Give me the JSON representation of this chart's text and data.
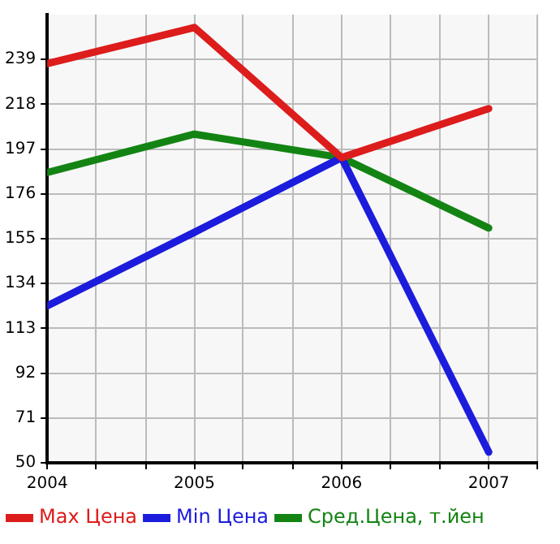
{
  "chart_data": {
    "type": "line",
    "x": [
      2004,
      2005,
      2006,
      2007
    ],
    "series": [
      {
        "name": "Max Цена",
        "color": "#dd1c1c",
        "values": [
          237,
          254,
          193,
          216
        ]
      },
      {
        "name": "Min Цена",
        "color": "#1c1cdd",
        "values": [
          123.5,
          158,
          193,
          55
        ]
      },
      {
        "name": "Сред.Цена, т.йен",
        "color": "#138413",
        "values": [
          186,
          204,
          193,
          160
        ]
      }
    ],
    "xlim": [
      2004,
      2007.33
    ],
    "xticks": [
      2004,
      {
        "value": 2004.33,
        "label": null
      },
      {
        "value": 2004.67,
        "label": null
      },
      2005,
      {
        "value": 2005.33,
        "label": null
      },
      {
        "value": 2005.67,
        "label": null
      },
      2006,
      {
        "value": 2006.33,
        "label": null
      },
      {
        "value": 2006.67,
        "label": null
      },
      2007,
      {
        "value": 2007.33,
        "label": null
      }
    ],
    "ylim": [
      50,
      260
    ],
    "yticks": [
      50,
      71,
      92,
      113,
      134,
      155,
      176,
      197,
      218,
      239
    ],
    "grid": true,
    "legend": "bottom",
    "marker": "none",
    "line_style": "solid"
  }
}
